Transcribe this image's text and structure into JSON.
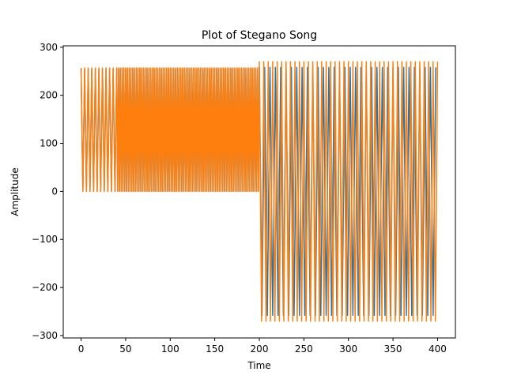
{
  "chart_data": {
    "type": "line",
    "title": "Plot of Stegano Song",
    "xlabel": "Time",
    "ylabel": "Amplitude",
    "xlim": [
      -20,
      420
    ],
    "ylim": [
      -305,
      303
    ],
    "xticks": [
      0,
      50,
      100,
      150,
      200,
      250,
      300,
      350,
      400
    ],
    "yticks": [
      -300,
      -200,
      -100,
      0,
      100,
      200,
      300
    ],
    "grid": false,
    "legend": "none",
    "colors": {
      "series_1": "#1f77b4",
      "series_2": "#ff7f0e"
    },
    "series": [
      {
        "color": "#1f77b4",
        "segments": [
          {
            "x_range": [
              0,
              40
            ],
            "high": 255,
            "low": 0,
            "period": 4
          },
          {
            "x_range": [
              40,
              200
            ],
            "high": 255,
            "low": 0,
            "period": 2
          },
          {
            "x_range": [
              200,
              400
            ],
            "high": 258,
            "low": -258,
            "period": 6
          }
        ]
      },
      {
        "color": "#ff7f0e",
        "segments": [
          {
            "x_range": [
              0,
              40
            ],
            "high": 257,
            "low": 0,
            "period": 4
          },
          {
            "x_range": [
              40,
              200
            ],
            "high": 257,
            "low": 0,
            "period": 2
          },
          {
            "x_range": [
              200,
              400
            ],
            "high": 270,
            "low": -270,
            "period": 5
          }
        ]
      }
    ]
  }
}
